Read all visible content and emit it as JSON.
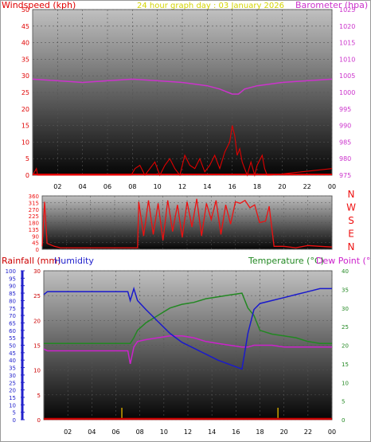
{
  "colors": {
    "wind": "#e00000",
    "gust": "#e00000",
    "barometer": "#cc33cc",
    "title": "#d4d400",
    "direction": "#ee1111",
    "rain": "#cc0000",
    "humidity": "#1a1acc",
    "temperature": "#228822",
    "dewpoint": "#cc22cc",
    "rain_axis": "#cc0000",
    "hum_axis": "#2222cc",
    "temp_axis": "#228822",
    "grid_bg_top": "#bdbdbd",
    "grid_bg_bottom": "#050505"
  },
  "header": {
    "title": "24 hour graph day : 03 January 2026"
  },
  "chart_data": [
    {
      "type": "line",
      "name": "wind-pressure",
      "title": "24 hour graph day : 03 January 2026",
      "ylabel": "Windspeed (kph)",
      "y2label": "Barometer (hpa)",
      "x_ticks": [
        "02",
        "04",
        "06",
        "08",
        "10",
        "12",
        "14",
        "16",
        "18",
        "20",
        "22",
        "00"
      ],
      "ylim": [
        0,
        50
      ],
      "yticks": [
        0,
        5,
        10,
        15,
        20,
        25,
        30,
        35,
        40,
        45,
        50
      ],
      "y2lim": [
        975,
        1025
      ],
      "y2ticks": [
        975,
        980,
        985,
        990,
        995,
        1000,
        1005,
        1010,
        1015,
        1020,
        1025
      ],
      "x_hours": [
        0,
        2,
        4,
        6,
        8,
        10,
        12,
        14,
        15,
        16,
        16.5,
        17,
        18,
        20,
        22,
        24
      ],
      "barometer": [
        1004,
        1003.5,
        1003,
        1003.5,
        1004,
        1003.5,
        1003,
        1002,
        1001,
        999.5,
        999.5,
        1001,
        1002,
        1003,
        1003.5,
        1004
      ],
      "wind_hours": [
        0,
        0.3,
        0.4,
        7.9,
        8.2,
        8.6,
        9.0,
        9.4,
        9.8,
        10.2,
        10.6,
        11.0,
        11.4,
        11.8,
        12.2,
        12.6,
        13.0,
        13.4,
        13.8,
        14.2,
        14.6,
        15.0,
        15.4,
        15.8,
        16.0,
        16.2,
        16.4,
        16.6,
        16.8,
        17.0,
        17.2,
        17.5,
        17.8,
        18.0,
        18.4,
        18.6,
        18.8,
        19.0,
        24
      ],
      "wind": [
        0,
        2,
        0,
        0,
        2,
        3,
        0,
        2,
        4,
        0,
        3,
        5,
        2,
        0,
        6,
        3,
        2,
        5,
        1,
        3,
        6,
        2,
        7,
        10,
        15,
        12,
        6,
        8,
        4,
        2,
        0,
        4,
        0,
        3,
        6,
        2,
        0,
        0,
        2
      ]
    },
    {
      "type": "line",
      "name": "wind-direction",
      "compass_labels": [
        "N",
        "W",
        "S",
        "E",
        "N"
      ],
      "ylim": [
        0,
        360
      ],
      "yticks": [
        0,
        45,
        90,
        135,
        180,
        225,
        270,
        315,
        360
      ],
      "x_hours": [
        0,
        0.2,
        0.4,
        1.0,
        1.5,
        7.9,
        8.0,
        8.4,
        8.8,
        9.2,
        9.6,
        10.0,
        10.4,
        10.8,
        11.2,
        11.6,
        12.0,
        12.4,
        12.8,
        13.2,
        13.6,
        14.0,
        14.4,
        14.8,
        15.2,
        15.6,
        16.0,
        16.4,
        16.8,
        17.2,
        17.6,
        18.0,
        18.5,
        18.8,
        19.2,
        20,
        21,
        22,
        23,
        24
      ],
      "direction": [
        20,
        320,
        40,
        20,
        10,
        10,
        320,
        90,
        330,
        100,
        310,
        60,
        330,
        120,
        300,
        80,
        320,
        150,
        340,
        90,
        310,
        200,
        330,
        100,
        300,
        170,
        320,
        310,
        330,
        280,
        300,
        180,
        190,
        290,
        20,
        20,
        10,
        25,
        20,
        15
      ]
    },
    {
      "type": "line",
      "name": "rain-humidity-temperature",
      "left_label_rain": "Rainfall (mm)",
      "left_label_humidity": "Humidity",
      "right_label_temp": "Temperature (°C)",
      "right_label_dew": "Dew Point (°C)",
      "x_ticks": [
        "02",
        "04",
        "06",
        "08",
        "10",
        "12",
        "14",
        "16",
        "18",
        "20",
        "22",
        "00"
      ],
      "humidity_lim": [
        0,
        100
      ],
      "humidity_ticks": [
        0,
        5,
        10,
        15,
        20,
        25,
        30,
        35,
        40,
        45,
        50,
        55,
        60,
        65,
        70,
        75,
        80,
        85,
        90,
        95,
        100
      ],
      "rain_lim": [
        0,
        30
      ],
      "rain_ticks": [
        0,
        5,
        10,
        15,
        20,
        25,
        30
      ],
      "temp_lim": [
        0,
        40
      ],
      "temp_ticks": [
        0,
        5,
        10,
        15,
        20,
        25,
        30,
        35,
        40
      ],
      "x_hours": [
        0,
        0.3,
        1,
        2,
        4,
        6,
        7.0,
        7.2,
        7.5,
        7.8,
        8.5,
        9.5,
        10.5,
        11.5,
        12.5,
        13.5,
        14.5,
        15.5,
        16.5,
        17.0,
        17.5,
        18,
        19,
        20,
        21,
        22,
        23,
        24
      ],
      "humidity": [
        84,
        86,
        86,
        86,
        86,
        86,
        86,
        80,
        88,
        80,
        74,
        66,
        58,
        52,
        48,
        44,
        40,
        37,
        34,
        58,
        74,
        78,
        80,
        82,
        84,
        86,
        88,
        88
      ],
      "temperature": [
        20.5,
        20.5,
        20.5,
        20.5,
        20.5,
        20.5,
        20.5,
        20.5,
        22,
        24,
        26,
        28,
        30,
        31,
        31.5,
        32.5,
        33,
        33.5,
        34,
        30,
        28,
        24,
        23,
        22.5,
        22,
        21,
        20.5,
        20.5
      ],
      "dewpoint": [
        19,
        18.5,
        18.5,
        18.5,
        18.5,
        18.5,
        18.5,
        15,
        19.5,
        21,
        21.5,
        22,
        22.5,
        22.5,
        22,
        21,
        20.5,
        20,
        19.5,
        19.5,
        20,
        20,
        20,
        19.5,
        19.5,
        19.5,
        19.5,
        19.5
      ],
      "rain": [
        0,
        0,
        0,
        0,
        0,
        0,
        0,
        0,
        0,
        0,
        0,
        0,
        0,
        0,
        0,
        0,
        0,
        0,
        0,
        0,
        0,
        0,
        0,
        0,
        0,
        0,
        0,
        0
      ],
      "markers_hours": [
        6.5,
        19.5
      ]
    }
  ]
}
